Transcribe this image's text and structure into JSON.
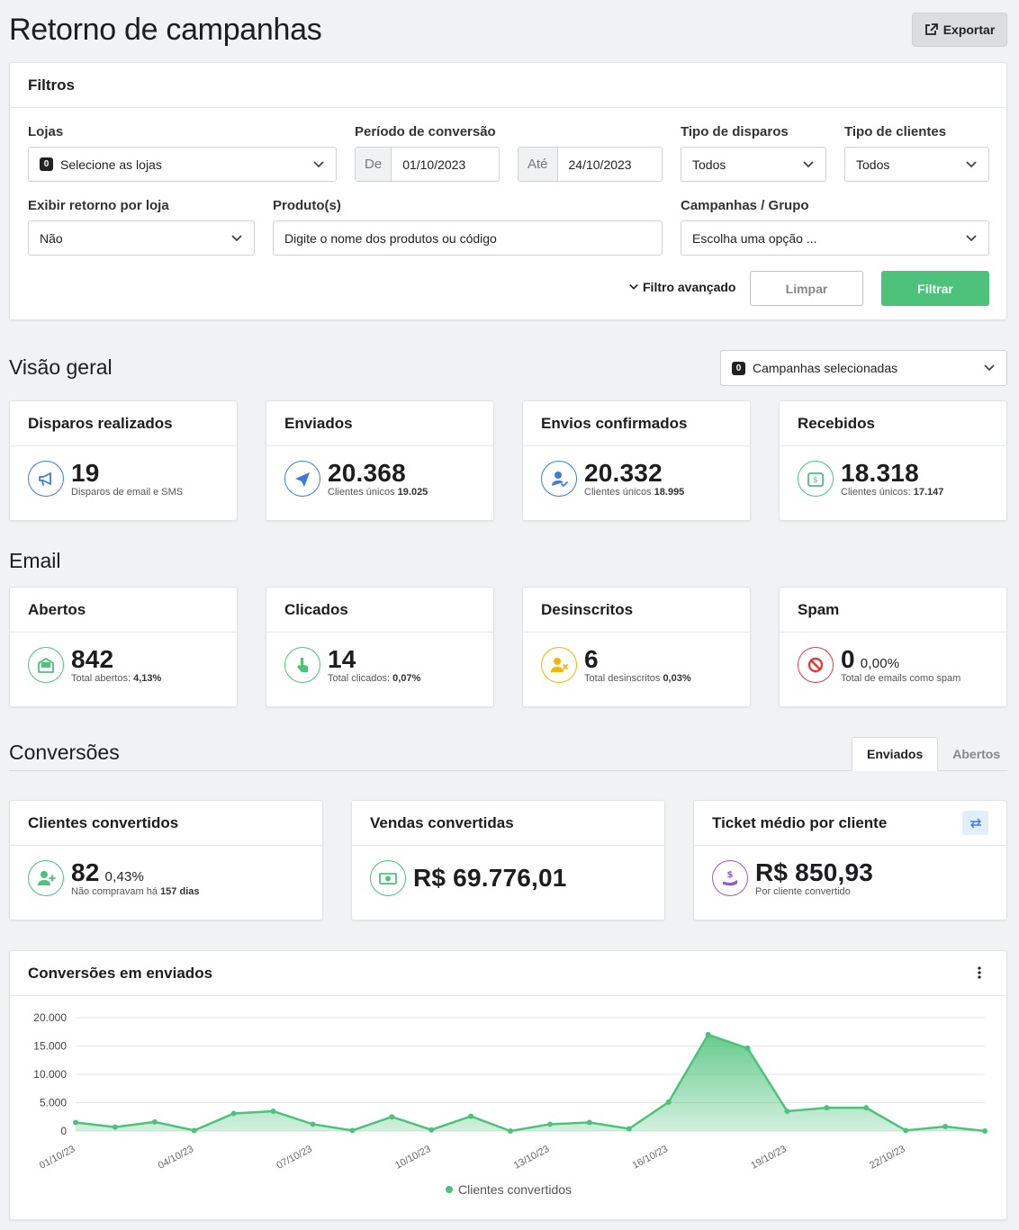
{
  "page": {
    "title": "Retorno de campanhas",
    "export_label": "Exportar"
  },
  "filters": {
    "title": "Filtros",
    "lojas": {
      "label": "Lojas",
      "count": "0",
      "placeholder": "Selecione as lojas"
    },
    "periodo": {
      "label": "Período de conversão",
      "from_prefix": "De",
      "from": "01/10/2023",
      "to_prefix": "Até",
      "to": "24/10/2023"
    },
    "tipo_disparos": {
      "label": "Tipo de disparos",
      "value": "Todos"
    },
    "tipo_clientes": {
      "label": "Tipo de clientes",
      "value": "Todos"
    },
    "exibir_retorno": {
      "label": "Exibir retorno por loja",
      "value": "Não"
    },
    "produtos": {
      "label": "Produto(s)",
      "placeholder": "Digite o nome dos produtos ou código"
    },
    "campanhas": {
      "label": "Campanhas / Grupo",
      "value": "Escolha uma opção ..."
    },
    "advanced_label": "Filtro avançado",
    "clear_label": "Limpar",
    "filter_label": "Filtrar"
  },
  "overview": {
    "title": "Visão geral",
    "campaign_select": {
      "count": "0",
      "label": "Campanhas selecionadas"
    },
    "cards": [
      {
        "title": "Disparos realizados",
        "value": "19",
        "sub": "Disparos de email e SMS",
        "sub_bold": "",
        "icon": "megaphone-icon",
        "color": "#3b7ddd"
      },
      {
        "title": "Enviados",
        "value": "20.368",
        "sub": "Clientes únicos",
        "sub_bold": "19.025",
        "icon": "paper-plane-icon",
        "color": "#3b7ddd"
      },
      {
        "title": "Envios confirmados",
        "value": "20.332",
        "sub": "Clientes únicos",
        "sub_bold": "18.995",
        "icon": "user-check-icon",
        "color": "#3b7ddd"
      },
      {
        "title": "Recebidos",
        "value": "18.318",
        "sub": "Clientes únicos:",
        "sub_bold": "17.147",
        "icon": "money-envelope-icon",
        "color": "#4cc27a"
      }
    ]
  },
  "email": {
    "title": "Email",
    "cards": [
      {
        "title": "Abertos",
        "value": "842",
        "pct": "",
        "sub": "Total abertos:",
        "sub_bold": "4,13%",
        "icon": "open-envelope-icon",
        "color": "#4cc27a"
      },
      {
        "title": "Clicados",
        "value": "14",
        "pct": "",
        "sub": "Total clicados:",
        "sub_bold": "0,07%",
        "icon": "pointer-hand-icon",
        "color": "#4cc27a"
      },
      {
        "title": "Desinscritos",
        "value": "6",
        "pct": "",
        "sub": "Total desinscritos",
        "sub_bold": "0,03%",
        "icon": "user-remove-icon",
        "color": "#f2b600"
      },
      {
        "title": "Spam",
        "value": "0",
        "pct": "0,00%",
        "sub": "Total de emails como spam",
        "sub_bold": "",
        "icon": "prohibited-icon",
        "color": "#e03b3b"
      }
    ]
  },
  "conversions": {
    "title": "Conversões",
    "tabs": [
      "Enviados",
      "Abertos"
    ],
    "cards": [
      {
        "title": "Clientes convertidos",
        "value": "82",
        "pct": "0,43%",
        "sub": "Não compravam há",
        "sub_bold": "157 dias",
        "icon": "user-plus-icon",
        "color": "#4cc27a"
      },
      {
        "title": "Vendas convertidas",
        "value": "R$ 69.776,01",
        "pct": "",
        "sub": "",
        "sub_bold": "",
        "icon": "cash-icon",
        "color": "#4cc27a"
      },
      {
        "title": "Ticket médio por cliente",
        "value": "R$ 850,93",
        "pct": "",
        "sub": "Por cliente convertido",
        "sub_bold": "",
        "icon": "hand-dollar-icon",
        "color": "#9b59d0"
      }
    ]
  },
  "chart_card": {
    "title": "Conversões em enviados"
  },
  "chart_data": {
    "type": "area",
    "title": "Conversões em enviados",
    "x": [
      "01/10/23",
      "02/10/23",
      "03/10/23",
      "04/10/23",
      "05/10/23",
      "06/10/23",
      "07/10/23",
      "08/10/23",
      "09/10/23",
      "10/10/23",
      "11/10/23",
      "12/10/23",
      "13/10/23",
      "14/10/23",
      "15/10/23",
      "16/10/23",
      "17/10/23",
      "18/10/23",
      "19/10/23",
      "20/10/23",
      "21/10/23",
      "22/10/23",
      "23/10/23",
      "24/10/23"
    ],
    "x_tick_labels": [
      "01/10/23",
      "04/10/23",
      "07/10/23",
      "10/10/23",
      "13/10/23",
      "16/10/23",
      "19/10/23",
      "22/10/23"
    ],
    "series": [
      {
        "name": "Clientes convertidos",
        "color": "#4cc27a",
        "values": [
          1500,
          700,
          1600,
          100,
          3100,
          3500,
          1200,
          100,
          2500,
          200,
          2600,
          0,
          1200,
          1500,
          400,
          5100,
          17000,
          14600,
          3500,
          4100,
          4100,
          100,
          800,
          0
        ]
      }
    ],
    "y_ticks": [
      "0",
      "5.000",
      "10.000",
      "15.000",
      "20.000"
    ],
    "ylim": [
      0,
      20000
    ],
    "grid": true,
    "legend": "bottom-center"
  }
}
